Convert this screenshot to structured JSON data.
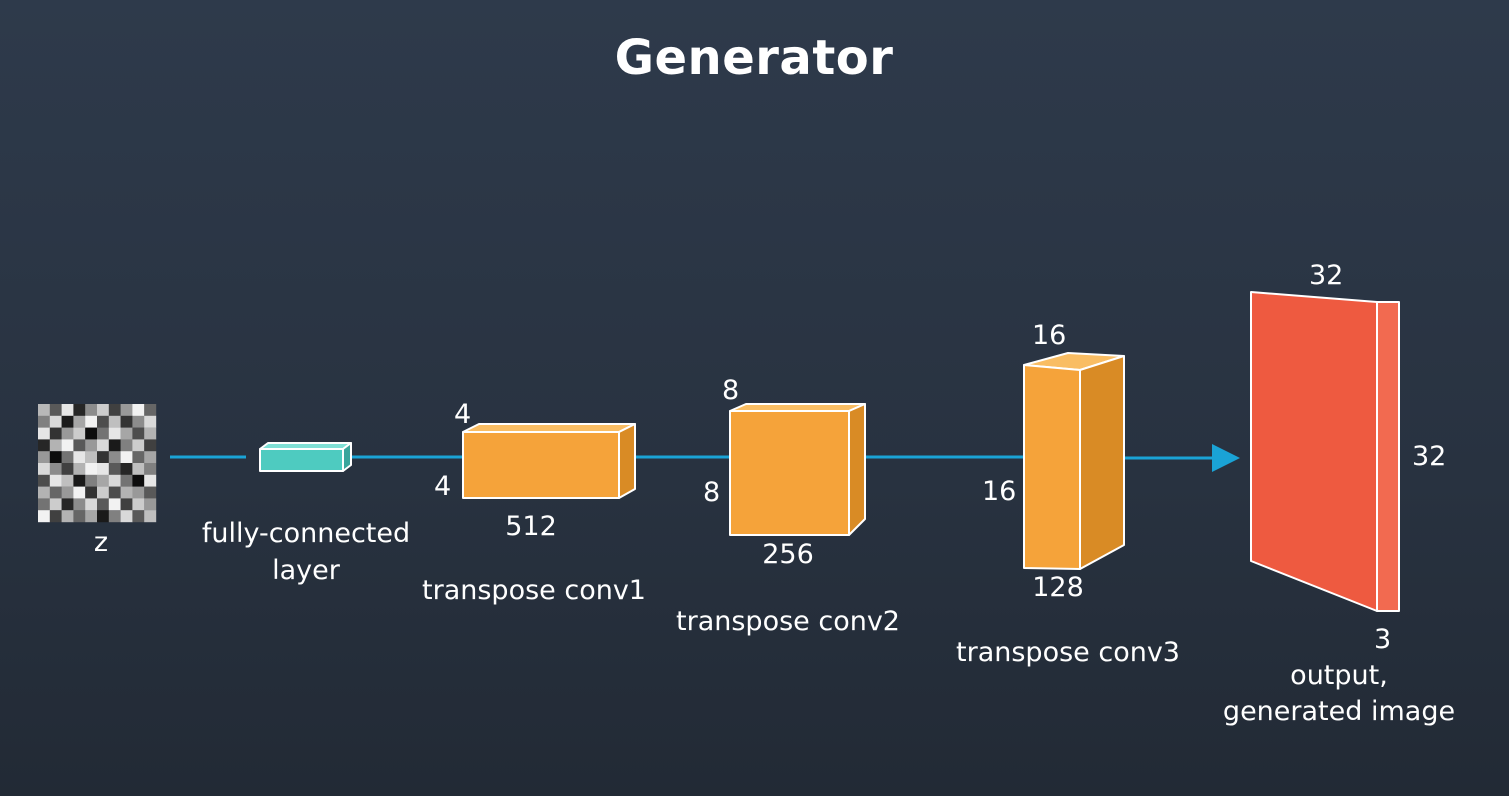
{
  "title": "Generator",
  "colors": {
    "connector": "#1aa3d6",
    "fc_layer": "#4ecbc0",
    "conv_block": "#f5a33a",
    "output_block": "#ee5a40",
    "text": "#ffffff",
    "background": "#2b3646"
  },
  "input": {
    "label": "z",
    "noise_grid": [
      [
        0.72,
        0.35,
        0.9,
        0.15,
        0.55,
        0.8,
        0.25,
        0.6,
        0.95,
        0.4
      ],
      [
        0.5,
        0.85,
        0.1,
        0.65,
        0.95,
        0.3,
        0.75,
        0.2,
        0.55,
        0.85
      ],
      [
        0.9,
        0.2,
        0.6,
        0.8,
        0.05,
        0.45,
        0.9,
        0.65,
        0.3,
        0.7
      ],
      [
        0.15,
        0.7,
        0.95,
        0.35,
        0.6,
        0.85,
        0.1,
        0.5,
        0.8,
        0.25
      ],
      [
        0.6,
        0.05,
        0.45,
        0.9,
        0.75,
        0.2,
        0.55,
        0.95,
        0.4,
        0.65
      ],
      [
        0.85,
        0.55,
        0.25,
        0.7,
        0.95,
        0.9,
        0.35,
        0.15,
        0.75,
        0.5
      ],
      [
        0.3,
        0.9,
        0.75,
        0.1,
        0.5,
        0.65,
        0.85,
        0.45,
        0.05,
        0.9
      ],
      [
        0.7,
        0.4,
        0.6,
        0.95,
        0.2,
        0.8,
        0.3,
        0.7,
        0.6,
        0.35
      ],
      [
        0.45,
        0.8,
        0.15,
        0.55,
        0.85,
        0.35,
        0.95,
        0.25,
        0.8,
        0.6
      ],
      [
        0.95,
        0.25,
        0.7,
        0.4,
        0.65,
        0.1,
        0.5,
        0.85,
        0.35,
        0.75
      ]
    ]
  },
  "fc_layer": {
    "label_line1": "fully-connected",
    "label_line2": "layer"
  },
  "conv1": {
    "label": "transpose conv1",
    "height": "4",
    "width": "4",
    "depth": "512"
  },
  "conv2": {
    "label": "transpose conv2",
    "height": "8",
    "width": "8",
    "depth": "256"
  },
  "conv3": {
    "label": "transpose conv3",
    "height": "16",
    "width": "16",
    "depth": "128"
  },
  "output": {
    "width": "32",
    "height": "32",
    "depth": "3",
    "label_line1": "output,",
    "label_line2": "generated image"
  }
}
